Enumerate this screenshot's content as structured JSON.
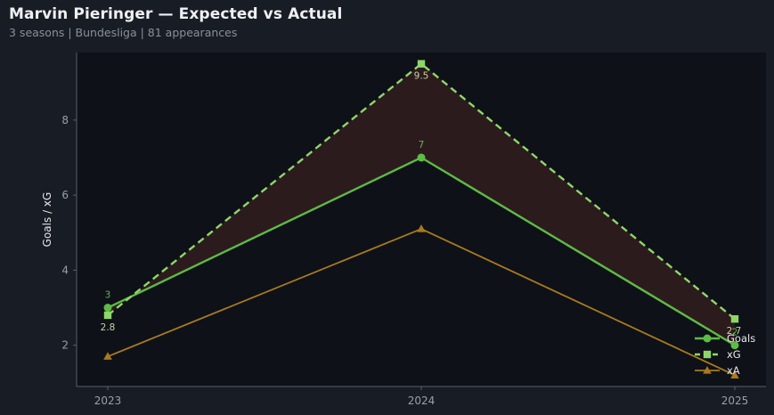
{
  "header": {
    "title": "Marvin Pieringer — Expected vs Actual",
    "subtitle": "3 seasons | Bundesliga | 81 appearances"
  },
  "colors": {
    "background": "#181c24",
    "plot_background": "#0e1117",
    "goals": "#5dbb46",
    "xg": "#8ed66a",
    "xa": "#a87a1e",
    "gap_fill": "#2e1c1e",
    "axis": "#5a5f68"
  },
  "chart_data": {
    "type": "line",
    "categories": [
      "2023",
      "2024",
      "2025"
    ],
    "ylabel": "Goals / xG",
    "xlabel": "",
    "ylim": [
      0.9,
      9.8
    ],
    "yticks": [
      2,
      4,
      6,
      8
    ],
    "grid": false,
    "legend_position": "bottom-right",
    "series": [
      {
        "name": "Goals",
        "values": [
          3,
          7,
          2
        ],
        "labels": [
          "3",
          "7",
          "2"
        ],
        "style": "solid",
        "marker": "circle"
      },
      {
        "name": "xG",
        "values": [
          2.8,
          9.5,
          2.7
        ],
        "labels": [
          "2.8",
          "9.5",
          "2.7"
        ],
        "style": "dashed",
        "marker": "square"
      },
      {
        "name": "xA",
        "values": [
          1.7,
          5.1,
          1.2
        ],
        "style": "solid",
        "marker": "triangle"
      }
    ],
    "shaded_region": "between Goals and xG"
  }
}
